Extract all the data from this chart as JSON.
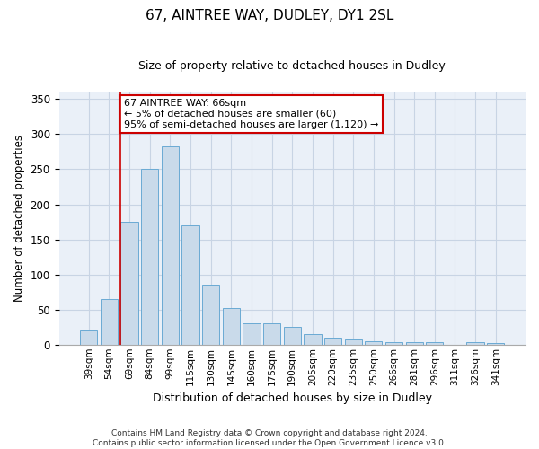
{
  "title1": "67, AINTREE WAY, DUDLEY, DY1 2SL",
  "title2": "Size of property relative to detached houses in Dudley",
  "xlabel": "Distribution of detached houses by size in Dudley",
  "ylabel": "Number of detached properties",
  "categories": [
    "39sqm",
    "54sqm",
    "69sqm",
    "84sqm",
    "99sqm",
    "115sqm",
    "130sqm",
    "145sqm",
    "160sqm",
    "175sqm",
    "190sqm",
    "205sqm",
    "220sqm",
    "235sqm",
    "250sqm",
    "266sqm",
    "281sqm",
    "296sqm",
    "311sqm",
    "326sqm",
    "341sqm"
  ],
  "values": [
    20,
    65,
    175,
    250,
    283,
    170,
    85,
    52,
    30,
    30,
    25,
    15,
    10,
    8,
    5,
    4,
    4,
    3,
    0,
    3,
    2
  ],
  "bar_color": "#c9daea",
  "bar_edge_color": "#6aaad4",
  "vline_color": "#cc0000",
  "annotation_text": "67 AINTREE WAY: 66sqm\n← 5% of detached houses are smaller (60)\n95% of semi-detached houses are larger (1,120) →",
  "annotation_box_color": "#cc0000",
  "ylim": [
    0,
    360
  ],
  "grid_color": "#c8d4e4",
  "background_color": "#eaf0f8",
  "footer1": "Contains HM Land Registry data © Crown copyright and database right 2024.",
  "footer2": "Contains public sector information licensed under the Open Government Licence v3.0."
}
